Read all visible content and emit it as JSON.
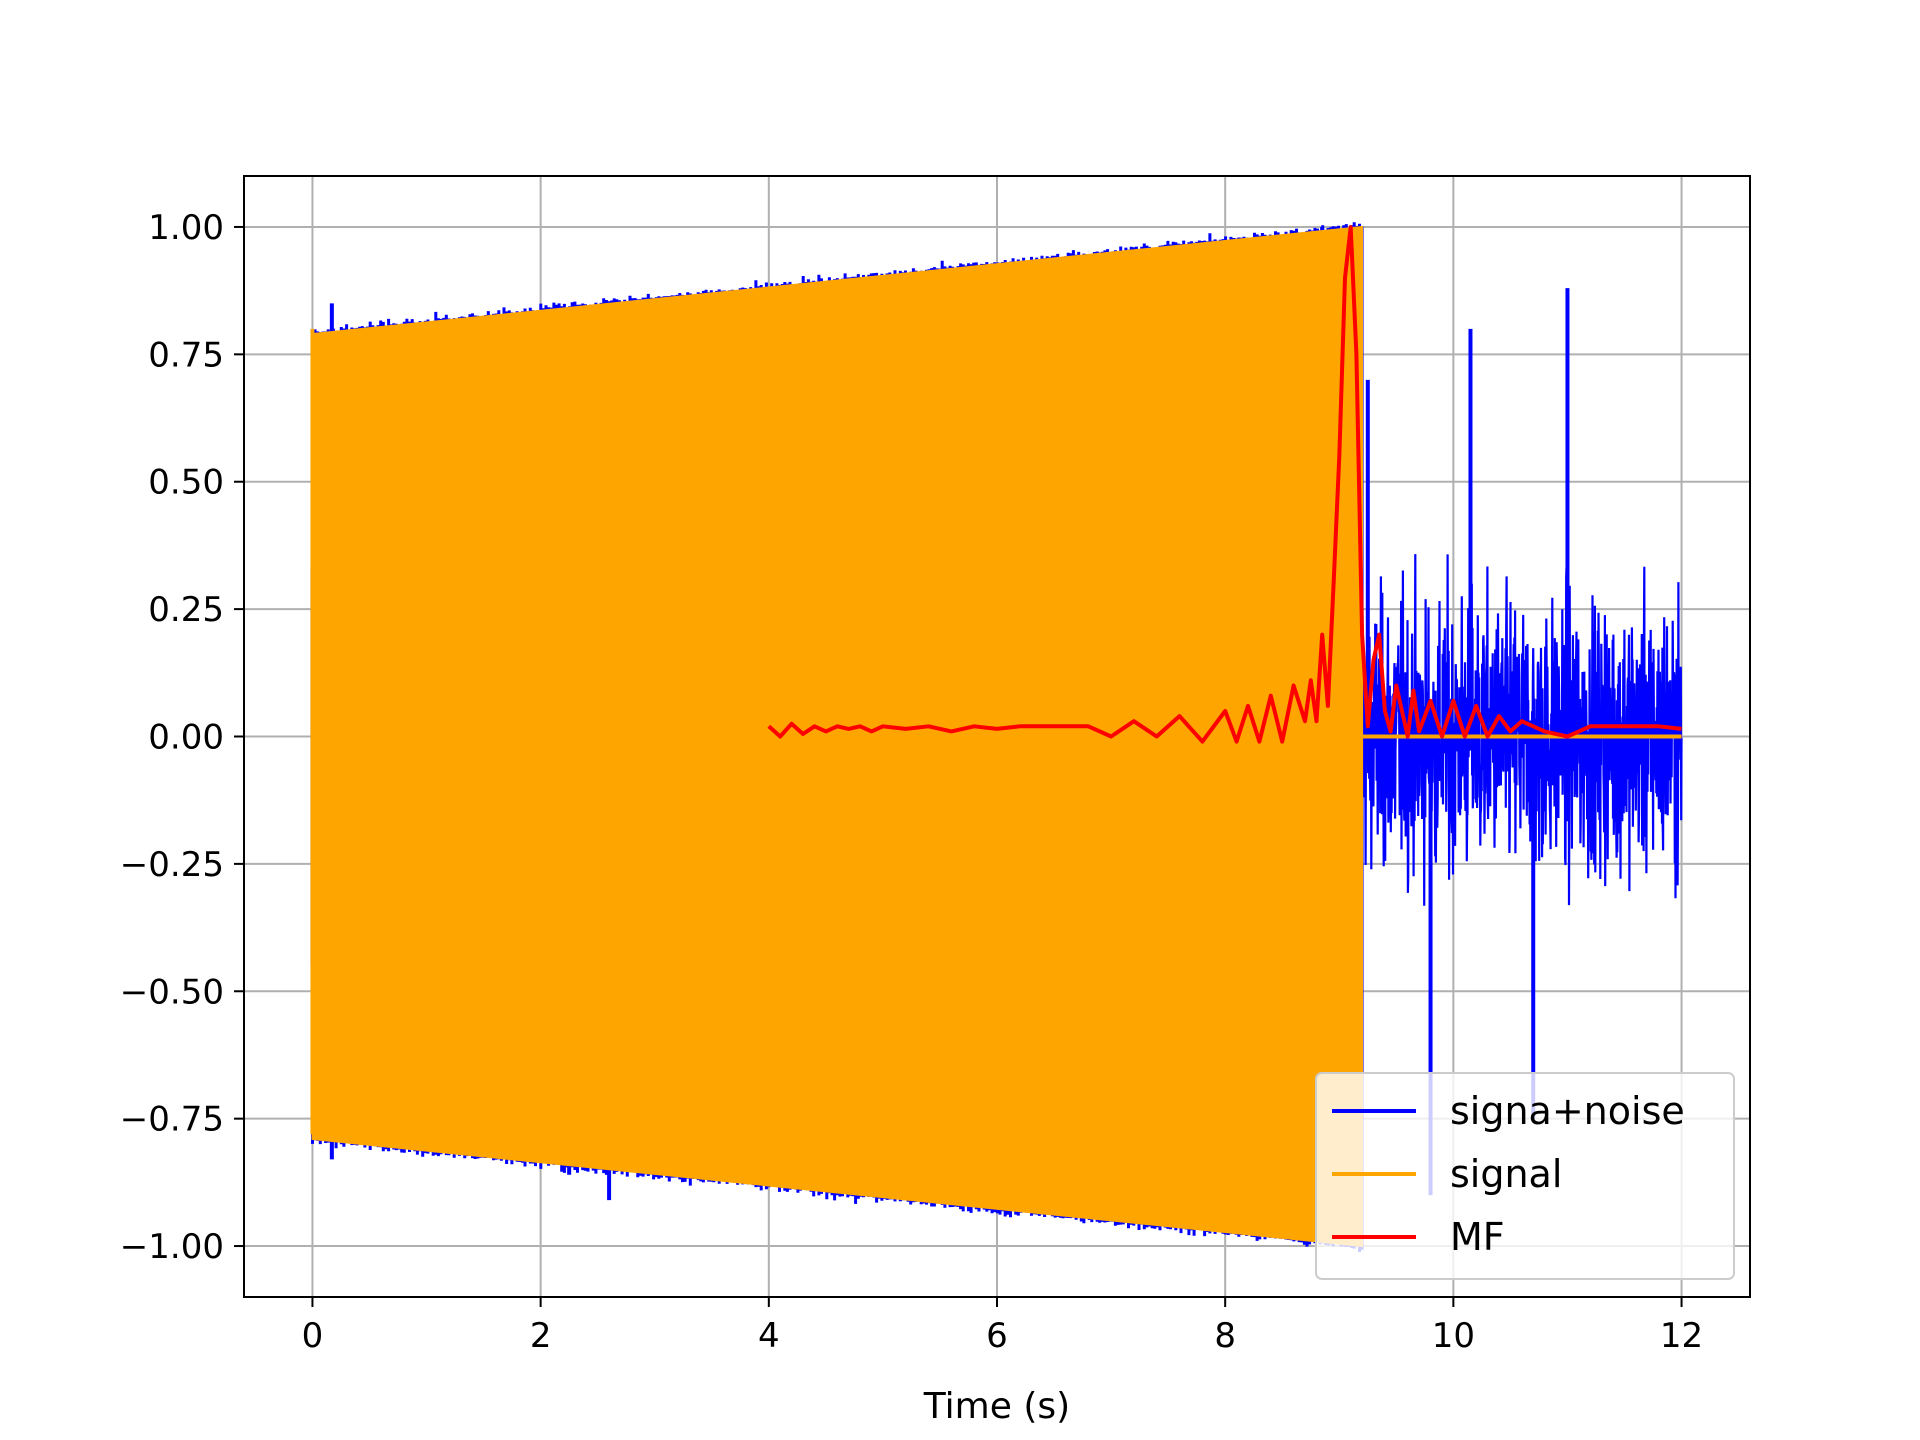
{
  "chart_data": {
    "type": "line",
    "title": "",
    "xlabel": "Time (s)",
    "ylabel": "",
    "xlim": [
      -0.6,
      12.6
    ],
    "ylim": [
      -1.1,
      1.1
    ],
    "xticks": [
      0,
      2,
      4,
      6,
      8,
      10,
      12
    ],
    "xtick_labels": [
      "0",
      "2",
      "4",
      "6",
      "8",
      "10",
      "12"
    ],
    "yticks": [
      1.0,
      0.75,
      0.5,
      0.25,
      0.0,
      -0.25,
      -0.5,
      -0.75,
      -1.0
    ],
    "ytick_labels": [
      "1.00",
      "0.75",
      "0.50",
      "0.25",
      "0.00",
      "−0.25",
      "−0.50",
      "−0.75",
      "−1.00"
    ],
    "grid": true,
    "legend_position": "lower-right",
    "series": [
      {
        "name": "signa+noise",
        "color": "#0000ff",
        "description": "signal plus noise; outside the signal envelope the noise reaches about ±0.9",
        "noise_region": {
          "x_start": 9.2,
          "x_end": 12.0
        },
        "spikes": [
          {
            "x": 0.17,
            "y": 0.85
          },
          {
            "x": 0.17,
            "y": -0.83
          },
          {
            "x": 2.25,
            "y": -0.86
          },
          {
            "x": 2.6,
            "y": -0.91
          },
          {
            "x": 3.5,
            "y": 0.85
          },
          {
            "x": 5.8,
            "y": 0.93
          },
          {
            "x": 8.85,
            "y": 1.0
          },
          {
            "x": 11.0,
            "y": 0.88
          },
          {
            "x": 9.25,
            "y": 0.7
          },
          {
            "x": 10.15,
            "y": 0.8
          },
          {
            "x": 9.8,
            "y": -0.9
          },
          {
            "x": 10.7,
            "y": -0.75
          }
        ]
      },
      {
        "name": "signal",
        "color": "#ffa500",
        "description": "high-frequency oscillation, linearly growing amplitude from 0 s to 9.2 s, zero afterwards",
        "envelope": {
          "x": [
            0.0,
            9.2
          ],
          "upper": [
            0.79,
            1.0
          ],
          "lower": [
            -0.79,
            -1.0
          ]
        },
        "zero_after": {
          "x_start": 9.2,
          "x_end": 12.0,
          "y": 0.0
        }
      },
      {
        "name": "MF",
        "color": "#ff0000",
        "description": "matched filter output",
        "x": [
          4.0,
          4.1,
          4.2,
          4.3,
          4.4,
          4.5,
          4.6,
          4.7,
          4.8,
          4.9,
          5.0,
          5.2,
          5.4,
          5.6,
          5.8,
          6.0,
          6.2,
          6.4,
          6.6,
          6.8,
          7.0,
          7.2,
          7.4,
          7.6,
          7.8,
          8.0,
          8.1,
          8.2,
          8.3,
          8.4,
          8.5,
          8.6,
          8.7,
          8.75,
          8.8,
          8.85,
          8.9,
          8.95,
          9.0,
          9.05,
          9.1,
          9.15,
          9.2,
          9.25,
          9.3,
          9.35,
          9.4,
          9.45,
          9.5,
          9.55,
          9.6,
          9.65,
          9.7,
          9.8,
          9.9,
          10.0,
          10.1,
          10.2,
          10.3,
          10.4,
          10.5,
          10.6,
          10.8,
          11.0,
          11.2,
          11.4,
          11.6,
          11.8,
          12.0
        ],
        "y": [
          0.02,
          0.0,
          0.025,
          0.005,
          0.02,
          0.01,
          0.02,
          0.015,
          0.02,
          0.01,
          0.02,
          0.015,
          0.02,
          0.01,
          0.02,
          0.015,
          0.02,
          0.02,
          0.02,
          0.02,
          0.0,
          0.03,
          0.0,
          0.04,
          -0.01,
          0.05,
          -0.01,
          0.06,
          -0.01,
          0.08,
          -0.01,
          0.1,
          0.03,
          0.11,
          0.03,
          0.2,
          0.06,
          0.3,
          0.55,
          0.9,
          1.0,
          0.75,
          0.2,
          0.02,
          0.15,
          0.2,
          0.05,
          0.01,
          0.1,
          0.05,
          0.0,
          0.09,
          0.01,
          0.07,
          0.0,
          0.07,
          0.0,
          0.06,
          0.0,
          0.04,
          0.01,
          0.03,
          0.01,
          0.0,
          0.02,
          0.02,
          0.02,
          0.02,
          0.015
        ]
      }
    ]
  }
}
